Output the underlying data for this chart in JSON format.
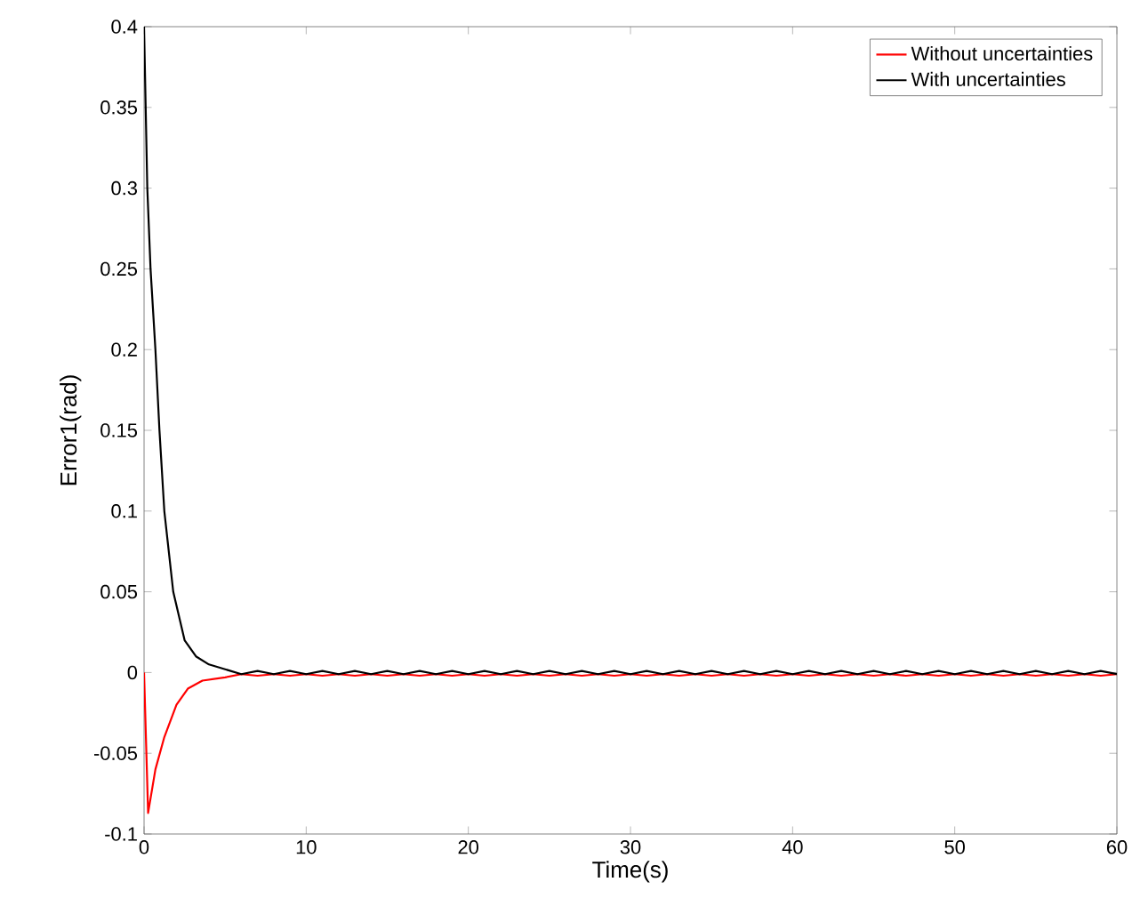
{
  "chart_data": {
    "type": "line",
    "xlabel": "Time(s)",
    "ylabel": "Error1(rad)",
    "xlim": [
      0,
      60
    ],
    "ylim": [
      -0.1,
      0.4
    ],
    "xticks": [
      0,
      10,
      20,
      30,
      40,
      50,
      60
    ],
    "yticks": [
      -0.1,
      -0.05,
      0,
      0.05,
      0.1,
      0.15,
      0.2,
      0.25,
      0.3,
      0.35,
      0.4
    ],
    "legend": "top right",
    "grid": false,
    "marker": "none",
    "line_style": "solid",
    "series": [
      {
        "name": "Without uncertainties",
        "color": "#ff0000",
        "x": [
          0,
          0.25,
          0.7,
          1.25,
          2,
          2.7,
          3.6,
          5,
          6,
          7,
          8,
          9,
          10,
          11,
          12,
          13,
          14,
          15,
          16,
          17,
          18,
          19,
          20,
          21,
          22,
          23,
          24,
          25,
          26,
          27,
          28,
          29,
          30,
          31,
          32,
          33,
          34,
          35,
          36,
          37,
          38,
          39,
          40,
          41,
          42,
          43,
          44,
          45,
          46,
          47,
          48,
          49,
          50,
          51,
          52,
          53,
          54,
          55,
          56,
          57,
          58,
          59,
          60
        ],
        "values": [
          0,
          -0.087,
          -0.06,
          -0.04,
          -0.02,
          -0.01,
          -0.005,
          -0.003,
          -0.001,
          -0.002,
          -0.001,
          -0.002,
          -0.001,
          -0.002,
          -0.001,
          -0.002,
          -0.001,
          -0.002,
          -0.001,
          -0.002,
          -0.001,
          -0.002,
          -0.001,
          -0.002,
          -0.001,
          -0.002,
          -0.001,
          -0.002,
          -0.001,
          -0.002,
          -0.001,
          -0.002,
          -0.001,
          -0.002,
          -0.001,
          -0.002,
          -0.001,
          -0.002,
          -0.001,
          -0.002,
          -0.001,
          -0.002,
          -0.001,
          -0.002,
          -0.001,
          -0.002,
          -0.001,
          -0.002,
          -0.001,
          -0.002,
          -0.001,
          -0.002,
          -0.001,
          -0.002,
          -0.001,
          -0.002,
          -0.001,
          -0.002,
          -0.001,
          -0.002,
          -0.001,
          -0.002,
          -0.001
        ]
      },
      {
        "name": "With uncertainties",
        "color": "#000000",
        "x": [
          0,
          0.2,
          0.4,
          0.7,
          0.95,
          1.25,
          1.8,
          2.5,
          3.2,
          4,
          5,
          6,
          7,
          8,
          9,
          10,
          11,
          12,
          13,
          14,
          15,
          16,
          17,
          18,
          19,
          20,
          21,
          22,
          23,
          24,
          25,
          26,
          27,
          28,
          29,
          30,
          31,
          32,
          33,
          34,
          35,
          36,
          37,
          38,
          39,
          40,
          41,
          42,
          43,
          44,
          45,
          46,
          47,
          48,
          49,
          50,
          51,
          52,
          53,
          54,
          55,
          56,
          57,
          58,
          59,
          60
        ],
        "values": [
          0.4,
          0.3,
          0.25,
          0.2,
          0.15,
          0.1,
          0.05,
          0.02,
          0.01,
          0.005,
          0.002,
          -0.001,
          0.001,
          -0.001,
          0.001,
          -0.001,
          0.001,
          -0.001,
          0.001,
          -0.001,
          0.001,
          -0.001,
          0.001,
          -0.001,
          0.001,
          -0.001,
          0.001,
          -0.001,
          0.001,
          -0.001,
          0.001,
          -0.001,
          0.001,
          -0.001,
          0.001,
          -0.001,
          0.001,
          -0.001,
          0.001,
          -0.001,
          0.001,
          -0.001,
          0.001,
          -0.001,
          0.001,
          -0.001,
          0.001,
          -0.001,
          0.001,
          -0.001,
          0.001,
          -0.001,
          0.001,
          -0.001,
          0.001,
          -0.001,
          0.001,
          -0.001,
          0.001,
          -0.001,
          0.001,
          -0.001,
          0.001,
          -0.001,
          0.001,
          -0.001
        ]
      }
    ]
  }
}
